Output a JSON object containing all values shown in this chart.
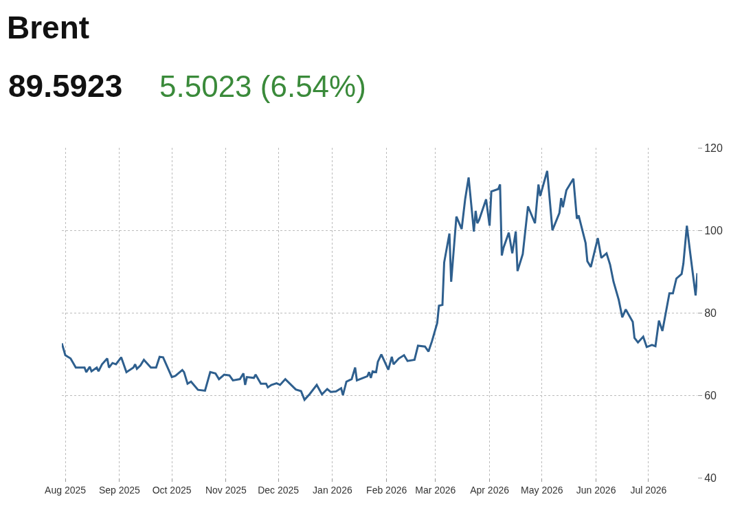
{
  "chart_data": {
    "type": "line",
    "title": "Brent",
    "subtitle": "89.5923",
    "annotations": [
      "5.5023 (6.54%)"
    ],
    "xlim": [
      "2025-07-30",
      "2026-07-29"
    ],
    "xticks": [
      {
        "value": "2025-08-01",
        "label": "Aug 2025"
      },
      {
        "value": "2025-09-01",
        "label": "Sep 2025"
      },
      {
        "value": "2025-10-01",
        "label": "Oct 2025"
      },
      {
        "value": "2025-11-01",
        "label": "Nov 2025"
      },
      {
        "value": "2025-12-01",
        "label": "Dec 2025"
      },
      {
        "value": "2026-01-01",
        "label": "Jan 2026"
      },
      {
        "value": "2026-02-01",
        "label": "Feb 2026"
      },
      {
        "value": "2026-03-01",
        "label": "Mar 2026"
      },
      {
        "value": "2026-04-01",
        "label": "Apr 2026"
      },
      {
        "value": "2026-05-01",
        "label": "May 2026"
      },
      {
        "value": "2026-06-01",
        "label": "Jun 2026"
      },
      {
        "value": "2026-07-01",
        "label": "Jul 2026"
      }
    ],
    "ylim": [
      40,
      120
    ],
    "yticks": [
      40,
      60,
      80,
      100,
      120
    ],
    "grid": true,
    "marker": "none",
    "line_style": "solid",
    "x": [
      "2025-07-30",
      "2025-08-01",
      "2025-08-04",
      "2025-08-07",
      "2025-08-12",
      "2025-08-13",
      "2025-08-15",
      "2025-08-16",
      "2025-08-19",
      "2025-08-20",
      "2025-08-22",
      "2025-08-25",
      "2025-08-26",
      "2025-08-28",
      "2025-08-30",
      "2025-09-02",
      "2025-09-05",
      "2025-09-09",
      "2025-09-10",
      "2025-09-11",
      "2025-09-13",
      "2025-09-15",
      "2025-09-19",
      "2025-09-22",
      "2025-09-24",
      "2025-09-26",
      "2025-10-01",
      "2025-10-03",
      "2025-10-07",
      "2025-10-08",
      "2025-10-10",
      "2025-10-12",
      "2025-10-16",
      "2025-10-20",
      "2025-10-23",
      "2025-10-26",
      "2025-10-28",
      "2025-10-31",
      "2025-11-03",
      "2025-11-05",
      "2025-11-09",
      "2025-11-11",
      "2025-11-12",
      "2025-11-13",
      "2025-11-17",
      "2025-11-18",
      "2025-11-21",
      "2025-11-24",
      "2025-11-25",
      "2025-11-27",
      "2025-11-30",
      "2025-12-02",
      "2025-12-05",
      "2025-12-11",
      "2025-12-14",
      "2025-12-16",
      "2025-12-19",
      "2025-12-23",
      "2025-12-26",
      "2025-12-29",
      "2025-12-31",
      "2026-01-03",
      "2026-01-06",
      "2026-01-07",
      "2026-01-09",
      "2026-01-12",
      "2026-01-14",
      "2026-01-15",
      "2026-01-21",
      "2026-01-22",
      "2026-01-23",
      "2026-01-24",
      "2026-01-26",
      "2026-01-27",
      "2026-01-29",
      "2026-02-02",
      "2026-02-04",
      "2026-02-05",
      "2026-02-08",
      "2026-02-11",
      "2026-02-13",
      "2026-02-17",
      "2026-02-19",
      "2026-02-23",
      "2026-02-25",
      "2026-02-27",
      "2026-03-02",
      "2026-03-03",
      "2026-03-05",
      "2026-03-06",
      "2026-03-09",
      "2026-03-10",
      "2026-03-13",
      "2026-03-16",
      "2026-03-18",
      "2026-03-20",
      "2026-03-23",
      "2026-03-24",
      "2026-03-25",
      "2026-03-26",
      "2026-03-30",
      "2026-04-01",
      "2026-04-02",
      "2026-04-06",
      "2026-04-07",
      "2026-04-08",
      "2026-04-09",
      "2026-04-12",
      "2026-04-14",
      "2026-04-16",
      "2026-04-17",
      "2026-04-20",
      "2026-04-23",
      "2026-04-27",
      "2026-04-29",
      "2026-04-30",
      "2026-05-04",
      "2026-05-07",
      "2026-05-11",
      "2026-05-12",
      "2026-05-13",
      "2026-05-15",
      "2026-05-19",
      "2026-05-21",
      "2026-05-22",
      "2026-05-26",
      "2026-05-27",
      "2026-05-29",
      "2026-06-02",
      "2026-06-04",
      "2026-06-07",
      "2026-06-09",
      "2026-06-11",
      "2026-06-14",
      "2026-06-16",
      "2026-06-18",
      "2026-06-22",
      "2026-06-23",
      "2026-06-25",
      "2026-06-28",
      "2026-06-30",
      "2026-07-03",
      "2026-07-05",
      "2026-07-07",
      "2026-07-09",
      "2026-07-13",
      "2026-07-15",
      "2026-07-17",
      "2026-07-20",
      "2026-07-21",
      "2026-07-23",
      "2026-07-25",
      "2026-07-28",
      "2026-07-29"
    ],
    "series": [
      {
        "color": "#2e5f8e",
        "values": [
          72.6,
          69.7,
          68.9,
          66.7,
          66.7,
          65.6,
          66.9,
          65.8,
          66.7,
          65.8,
          67.5,
          68.9,
          66.7,
          67.8,
          67.5,
          69.2,
          65.6,
          66.7,
          67.5,
          66.4,
          67.2,
          68.6,
          66.7,
          66.7,
          69.3,
          69.2,
          64.4,
          64.7,
          66.1,
          65.6,
          62.8,
          63.3,
          61.3,
          61.1,
          65.6,
          65.3,
          63.9,
          65,
          64.8,
          63.6,
          63.9,
          65.3,
          62.5,
          64.4,
          64.2,
          65,
          62.8,
          62.8,
          61.9,
          62.5,
          62.9,
          62.5,
          63.9,
          61.4,
          61,
          58.9,
          60.3,
          62.5,
          60.2,
          61.5,
          60.8,
          60.9,
          61.7,
          60,
          63.3,
          63.9,
          66.7,
          63.6,
          64.6,
          65.6,
          64.2,
          65.8,
          65.6,
          68.1,
          69.9,
          66.2,
          69.3,
          67.5,
          68.9,
          69.7,
          68.3,
          68.6,
          72,
          71.8,
          70.6,
          73.1,
          77.5,
          81.7,
          81.9,
          92.2,
          99.2,
          87.5,
          103.3,
          100.3,
          107.5,
          112.8,
          99.7,
          104.7,
          101.7,
          102.5,
          107.5,
          101.1,
          109.4,
          110,
          111.1,
          93.9,
          95.8,
          99.4,
          94.4,
          99.7,
          90.1,
          94.2,
          105.8,
          101.7,
          111.1,
          108.3,
          114.4,
          100,
          104.2,
          107.8,
          105.6,
          109.7,
          112.5,
          102.8,
          103.6,
          96.9,
          92.5,
          91.1,
          98.1,
          93.3,
          94.4,
          91.7,
          87.5,
          83.1,
          78.9,
          80.8,
          77.8,
          73.9,
          72.8,
          74.2,
          71.7,
          72.2,
          71.9,
          78.1,
          75.6,
          84.7,
          84.7,
          88.3,
          89.4,
          91.9,
          101.1,
          94.2,
          84.2,
          89.6
        ]
      }
    ]
  }
}
